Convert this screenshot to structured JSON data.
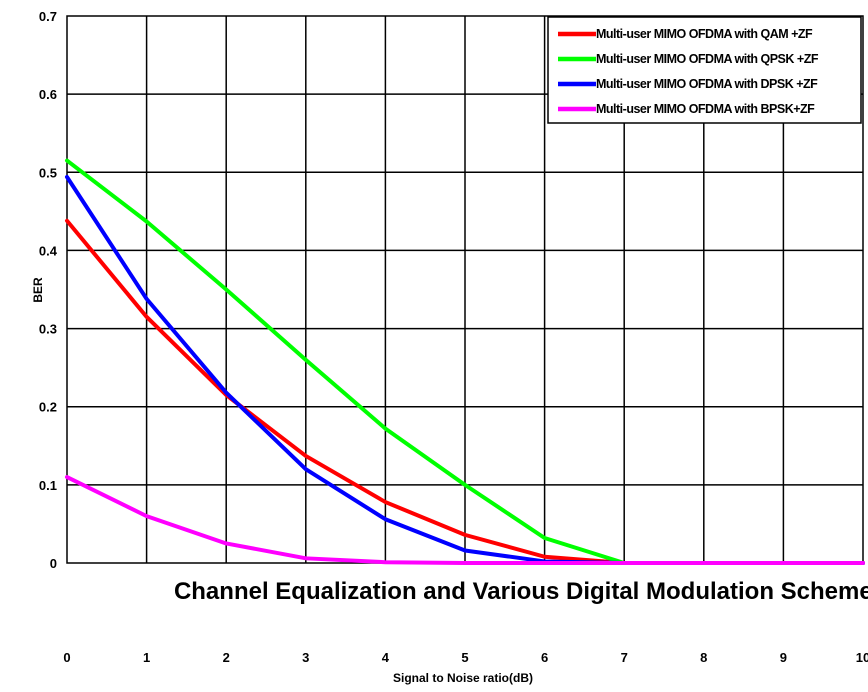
{
  "chart_data": {
    "type": "line",
    "title": "Channel Equalization and Various Digital Modulation Schemes",
    "xlabel": "Signal to Noise ratio(dB)",
    "ylabel": "BER",
    "xlim": [
      0,
      10
    ],
    "ylim": [
      0,
      0.7
    ],
    "grid": true,
    "legend_position": "top-right",
    "x_ticks": [
      "0",
      "1",
      "2",
      "3",
      "4",
      "5",
      "6",
      "7",
      "8",
      "9",
      "10"
    ],
    "y_ticks": [
      "0",
      "0.1",
      "0.2",
      "0.3",
      "0.4",
      "0.5",
      "0.6",
      "0.7"
    ],
    "x": [
      0,
      1,
      2,
      3,
      4,
      5,
      6,
      7,
      8,
      9,
      10
    ],
    "series": [
      {
        "name": "Multi-user MIMO OFDMA with QAM +ZF",
        "color": "#ff0000",
        "values": [
          0.438,
          0.315,
          0.215,
          0.137,
          0.078,
          0.036,
          0.008,
          0.0,
          0.0,
          0.0,
          0.0
        ]
      },
      {
        "name": "Multi-user MIMO OFDMA with QPSK +ZF",
        "color": "#00ff00",
        "values": [
          0.515,
          0.437,
          0.35,
          0.26,
          0.172,
          0.1,
          0.032,
          0.0,
          0.0,
          0.0,
          0.0
        ]
      },
      {
        "name": "Multi-user MIMO OFDMA with DPSK +ZF",
        "color": "#0000ff",
        "values": [
          0.494,
          0.338,
          0.218,
          0.12,
          0.056,
          0.016,
          0.002,
          0.0,
          0.0,
          0.0,
          0.0
        ]
      },
      {
        "name": "Multi-user MIMO OFDMA with BPSK+ZF",
        "color": "#ff00ff",
        "values": [
          0.11,
          0.06,
          0.025,
          0.006,
          0.001,
          0.0,
          0.0,
          0.0,
          0.0,
          0.0,
          0.0
        ]
      }
    ]
  }
}
